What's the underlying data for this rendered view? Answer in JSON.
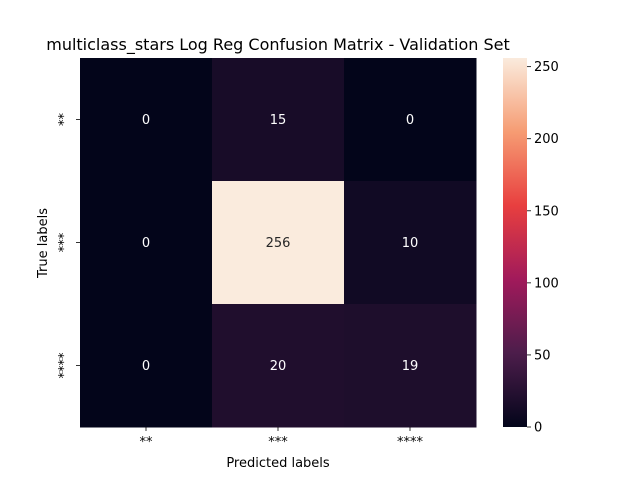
{
  "chart_data": {
    "type": "heatmap",
    "title": "multiclass_stars  Log Reg Confusion Matrix - Validation Set",
    "xlabel": "Predicted labels",
    "ylabel": "True labels",
    "x_categories": [
      "**",
      "***",
      "****"
    ],
    "y_categories": [
      "**",
      "***",
      "****"
    ],
    "values": [
      [
        0,
        15,
        0
      ],
      [
        0,
        256,
        10
      ],
      [
        0,
        20,
        19
      ]
    ],
    "annotations": [
      "0",
      "15",
      "0",
      "0",
      "256",
      "10",
      "0",
      "20",
      "19"
    ],
    "colorbar": {
      "min": 0,
      "max": 256,
      "ticks": [
        "0",
        "50",
        "100",
        "150",
        "200",
        "250"
      ],
      "colormap": "rocket",
      "colors": [
        "#03051a",
        "#4c1d4b",
        "#a11a5b",
        "#e83f3f",
        "#f69c73",
        "#faebdd"
      ]
    },
    "grid": false
  }
}
